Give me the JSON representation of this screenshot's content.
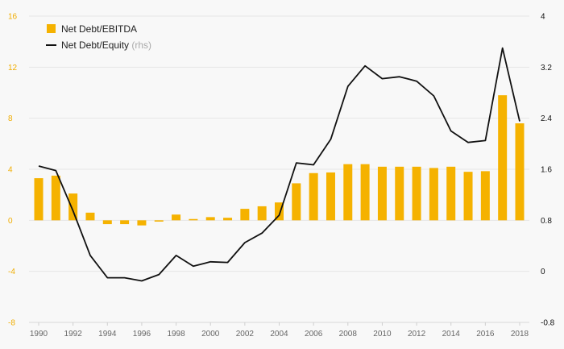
{
  "chart_data": {
    "type": "bar+line",
    "title": "",
    "x": [
      1990,
      1991,
      1992,
      1993,
      1994,
      1995,
      1996,
      1997,
      1998,
      1999,
      2000,
      2001,
      2002,
      2003,
      2004,
      2005,
      2006,
      2007,
      2008,
      2009,
      2010,
      2011,
      2012,
      2013,
      2014,
      2015,
      2016,
      2017,
      2018
    ],
    "x_tick_labels": [
      "1990",
      "1992",
      "1994",
      "1996",
      "1998",
      "2000",
      "2002",
      "2004",
      "2006",
      "2008",
      "2010",
      "2012",
      "2014",
      "2016",
      "2018"
    ],
    "series": [
      {
        "name": "Net Debt/EBITDA",
        "type": "bar",
        "axis": "left",
        "color": "#f5b200",
        "values": [
          3.3,
          3.5,
          2.1,
          0.6,
          -0.3,
          -0.3,
          -0.4,
          -0.1,
          0.45,
          0.1,
          0.25,
          0.2,
          0.9,
          1.1,
          1.4,
          2.9,
          3.7,
          3.75,
          4.4,
          4.4,
          4.2,
          4.2,
          4.2,
          4.1,
          4.2,
          3.8,
          3.85,
          9.8,
          7.6
        ]
      },
      {
        "name": "Net Debt/Equity",
        "name_suffix": "(rhs)",
        "type": "line",
        "axis": "right",
        "color": "#111111",
        "values": [
          1.65,
          1.58,
          0.95,
          0.25,
          -0.1,
          -0.1,
          -0.15,
          -0.05,
          0.25,
          0.08,
          0.15,
          0.14,
          0.45,
          0.6,
          0.88,
          1.7,
          1.67,
          2.07,
          2.9,
          3.22,
          3.02,
          3.05,
          2.98,
          2.75,
          2.2,
          2.02,
          2.05,
          3.5,
          2.35
        ]
      }
    ],
    "y_left": {
      "ylim": [
        -8,
        16
      ],
      "ticks": [
        "16",
        "12",
        "8",
        "4",
        "0",
        "-4",
        "-8"
      ],
      "color": "#f0ad00"
    },
    "y_right": {
      "ylim": [
        -0.8,
        4
      ],
      "ticks": [
        "4",
        "3.2",
        "2.4",
        "1.6",
        "0.8",
        "0",
        "-0.8"
      ],
      "color": "#111111"
    },
    "grid": true,
    "legend": "top-left"
  }
}
